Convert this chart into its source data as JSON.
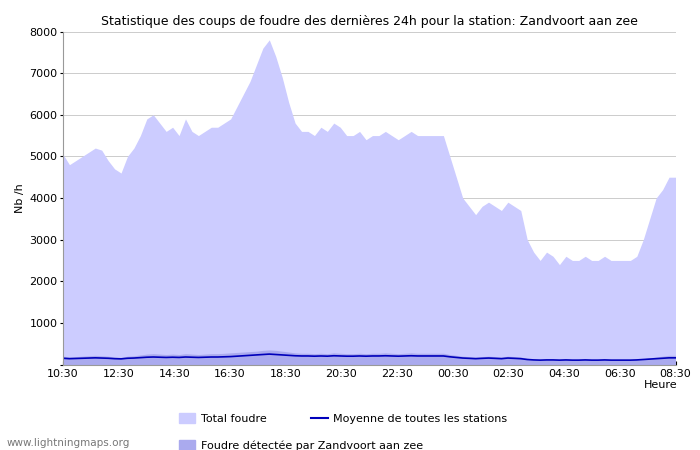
{
  "title": "Statistique des coups de foudre des dernières 24h pour la station: Zandvoort aan zee",
  "ylabel": "Nb /h",
  "xlabel": "Heure",
  "ylim": [
    0,
    8000
  ],
  "yticks": [
    0,
    1000,
    2000,
    3000,
    4000,
    5000,
    6000,
    7000,
    8000
  ],
  "xtick_labels": [
    "10:30",
    "12:30",
    "14:30",
    "16:30",
    "18:30",
    "20:30",
    "22:30",
    "00:30",
    "02:30",
    "04:30",
    "06:30",
    "08:30"
  ],
  "bg_color": "#ffffff",
  "fill_color_total": "#ccccff",
  "fill_color_station": "#aaaaee",
  "line_color": "#0000bb",
  "grid_color": "#cccccc",
  "watermark": "www.lightningmaps.org",
  "legend": [
    {
      "label": "Total foudre",
      "color": "#ccccff"
    },
    {
      "label": "Moyenne de toutes les stations",
      "color": "#0000bb"
    },
    {
      "label": "Foudre détectée par Zandvoort aan zee",
      "color": "#aaaaee"
    }
  ],
  "x": [
    0,
    1,
    2,
    3,
    4,
    5,
    6,
    7,
    8,
    9,
    10,
    11,
    12,
    13,
    14,
    15,
    16,
    17,
    18,
    19,
    20,
    21,
    22,
    23,
    24,
    25,
    26,
    27,
    28,
    29,
    30,
    31,
    32,
    33,
    34,
    35,
    36,
    37,
    38,
    39,
    40,
    41,
    42,
    43,
    44,
    45,
    46,
    47,
    48,
    49,
    50,
    51,
    52,
    53,
    54,
    55,
    56,
    57,
    58,
    59,
    60,
    61,
    62,
    63,
    64,
    65,
    66,
    67,
    68,
    69,
    70,
    71,
    72,
    73,
    74,
    75,
    76,
    77,
    78,
    79,
    80,
    81,
    82,
    83,
    84,
    85,
    86,
    87,
    88,
    89,
    90,
    91,
    92,
    93,
    94,
    95
  ],
  "total_y": [
    5050,
    4800,
    4900,
    5000,
    5100,
    5200,
    5150,
    4900,
    4700,
    4600,
    5000,
    5200,
    5500,
    5900,
    6000,
    5800,
    5600,
    5700,
    5500,
    5900,
    5600,
    5500,
    5600,
    5700,
    5700,
    5800,
    5900,
    6200,
    6500,
    6800,
    7200,
    7600,
    7800,
    7400,
    6900,
    6300,
    5800,
    5600,
    5600,
    5500,
    5700,
    5600,
    5800,
    5700,
    5500,
    5500,
    5600,
    5400,
    5500,
    5500,
    5600,
    5500,
    5400,
    5500,
    5600,
    5500,
    5500,
    5500,
    5500,
    5500,
    5000,
    4500,
    4000,
    3800,
    3600,
    3800,
    3900,
    3800,
    3700,
    3900,
    3800,
    3700,
    3000,
    2700,
    2500,
    2700,
    2600,
    2400,
    2600,
    2500,
    2500,
    2600,
    2500,
    2500,
    2600,
    2500,
    2500,
    2500,
    2500,
    2600,
    3000,
    3500,
    4000,
    4200,
    4500,
    4500
  ],
  "station_y": [
    200,
    180,
    190,
    200,
    210,
    220,
    210,
    200,
    180,
    170,
    200,
    210,
    230,
    250,
    260,
    250,
    240,
    250,
    240,
    260,
    250,
    240,
    250,
    260,
    260,
    270,
    280,
    290,
    300,
    310,
    320,
    340,
    350,
    340,
    320,
    300,
    280,
    270,
    270,
    260,
    270,
    260,
    280,
    270,
    260,
    260,
    270,
    260,
    270,
    270,
    280,
    270,
    260,
    270,
    280,
    270,
    270,
    270,
    270,
    270,
    240,
    220,
    200,
    190,
    180,
    190,
    200,
    190,
    180,
    200,
    190,
    180,
    150,
    130,
    120,
    130,
    130,
    120,
    130,
    120,
    120,
    130,
    120,
    120,
    130,
    120,
    120,
    120,
    120,
    130,
    140,
    160,
    180,
    200,
    220,
    220
  ],
  "avg_line_y": [
    150,
    140,
    145,
    150,
    155,
    160,
    155,
    150,
    140,
    135,
    150,
    155,
    165,
    175,
    180,
    175,
    170,
    175,
    170,
    180,
    175,
    170,
    175,
    180,
    180,
    185,
    190,
    200,
    210,
    220,
    230,
    240,
    250,
    240,
    230,
    220,
    210,
    205,
    205,
    200,
    205,
    200,
    210,
    205,
    200,
    200,
    205,
    200,
    205,
    205,
    210,
    205,
    200,
    205,
    210,
    205,
    205,
    205,
    205,
    205,
    185,
    170,
    155,
    148,
    140,
    148,
    155,
    148,
    140,
    155,
    148,
    140,
    120,
    110,
    105,
    110,
    110,
    105,
    110,
    105,
    105,
    110,
    105,
    105,
    110,
    105,
    105,
    105,
    105,
    110,
    120,
    130,
    140,
    150,
    160,
    160
  ]
}
